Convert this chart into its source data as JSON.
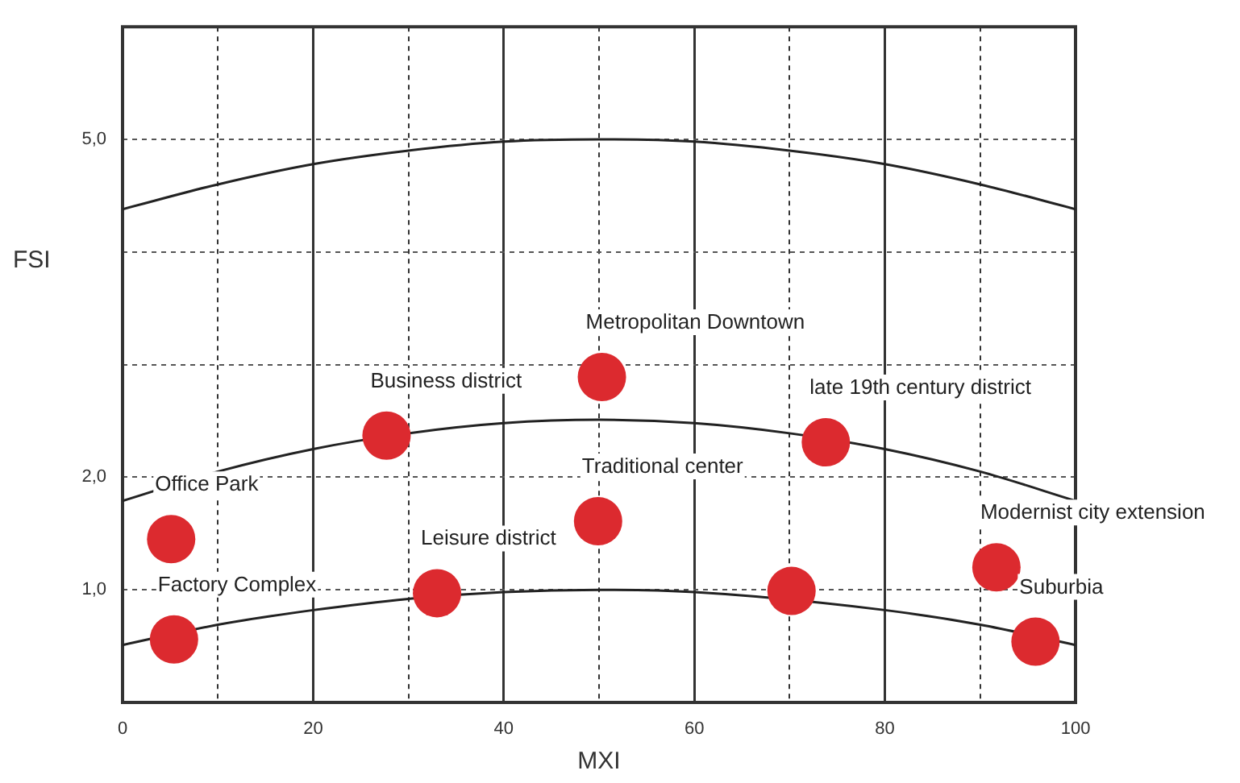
{
  "chart_data": {
    "type": "scatter",
    "xlabel": "MXI",
    "ylabel": "FSI",
    "xlim": [
      0,
      100
    ],
    "ylim": [
      0,
      6
    ],
    "xticks": [
      0,
      {
        "value": 10,
        "label": null
      },
      20,
      {
        "value": 30,
        "label": null
      },
      40,
      {
        "value": 50,
        "label": null
      },
      60,
      {
        "value": 70,
        "label": null
      },
      80,
      {
        "value": 90,
        "label": null
      },
      100
    ],
    "yticks": [
      {
        "value": 1,
        "label": "1,0"
      },
      {
        "value": 2,
        "label": "2,0"
      },
      {
        "value": 3,
        "label": null
      },
      {
        "value": 4,
        "label": null
      },
      {
        "value": 5,
        "label": "5,0"
      }
    ],
    "grid": true,
    "series": [
      {
        "marker": "circle",
        "color": "#dc2a2f",
        "x": [
          5.1,
          5.4,
          27.7,
          33,
          50.3,
          49.9,
          73.8,
          70.2,
          91.7,
          95.8
        ],
        "values": [
          1.45,
          0.56,
          2.37,
          0.97,
          2.89,
          1.61,
          2.31,
          0.99,
          1.2,
          0.54
        ]
      },
      {
        "type": "line",
        "marker": "none",
        "color": "#222222",
        "x": [
          0,
          10,
          20,
          30,
          40,
          50,
          60,
          70,
          80,
          90,
          100
        ],
        "values": [
          4.38,
          4.6,
          4.78,
          4.9,
          4.98,
          5.0,
          4.98,
          4.9,
          4.78,
          4.6,
          4.38
        ]
      },
      {
        "type": "line",
        "marker": "none",
        "color": "#222222",
        "x": [
          0,
          10,
          20,
          30,
          40,
          50,
          60,
          70,
          80,
          90,
          100
        ],
        "values": [
          1.79,
          2.05,
          2.25,
          2.39,
          2.48,
          2.51,
          2.48,
          2.39,
          2.25,
          2.05,
          1.79
        ]
      },
      {
        "type": "line",
        "marker": "none",
        "color": "#222222",
        "x": [
          0,
          10,
          20,
          30,
          40,
          50,
          60,
          70,
          80,
          90,
          100
        ],
        "values": [
          0.51,
          0.69,
          0.82,
          0.92,
          0.98,
          1.0,
          0.98,
          null,
          0.82,
          0.69,
          0.51
        ]
      }
    ],
    "annotations": [
      {
        "text": "Office Park",
        "x": 5.1,
        "y": 1.45
      },
      {
        "text": "Factory Complex",
        "x": 5.4,
        "y": 0.56
      },
      {
        "text": "Business district",
        "x": 27.7,
        "y": 2.37
      },
      {
        "text": "Leisure district",
        "x": 33,
        "y": 0.97
      },
      {
        "text": "Metropolitan Downtown",
        "x": 50.3,
        "y": 2.89
      },
      {
        "text": "Traditional center",
        "x": 49.9,
        "y": 1.61
      },
      {
        "text": "late 19th century district",
        "x": 73.8,
        "y": 2.31
      },
      {
        "text": "Modernist city extension",
        "x": 91.7,
        "y": 1.2
      },
      {
        "text": "Suburbia",
        "x": 95.8,
        "y": 0.54
      }
    ]
  }
}
